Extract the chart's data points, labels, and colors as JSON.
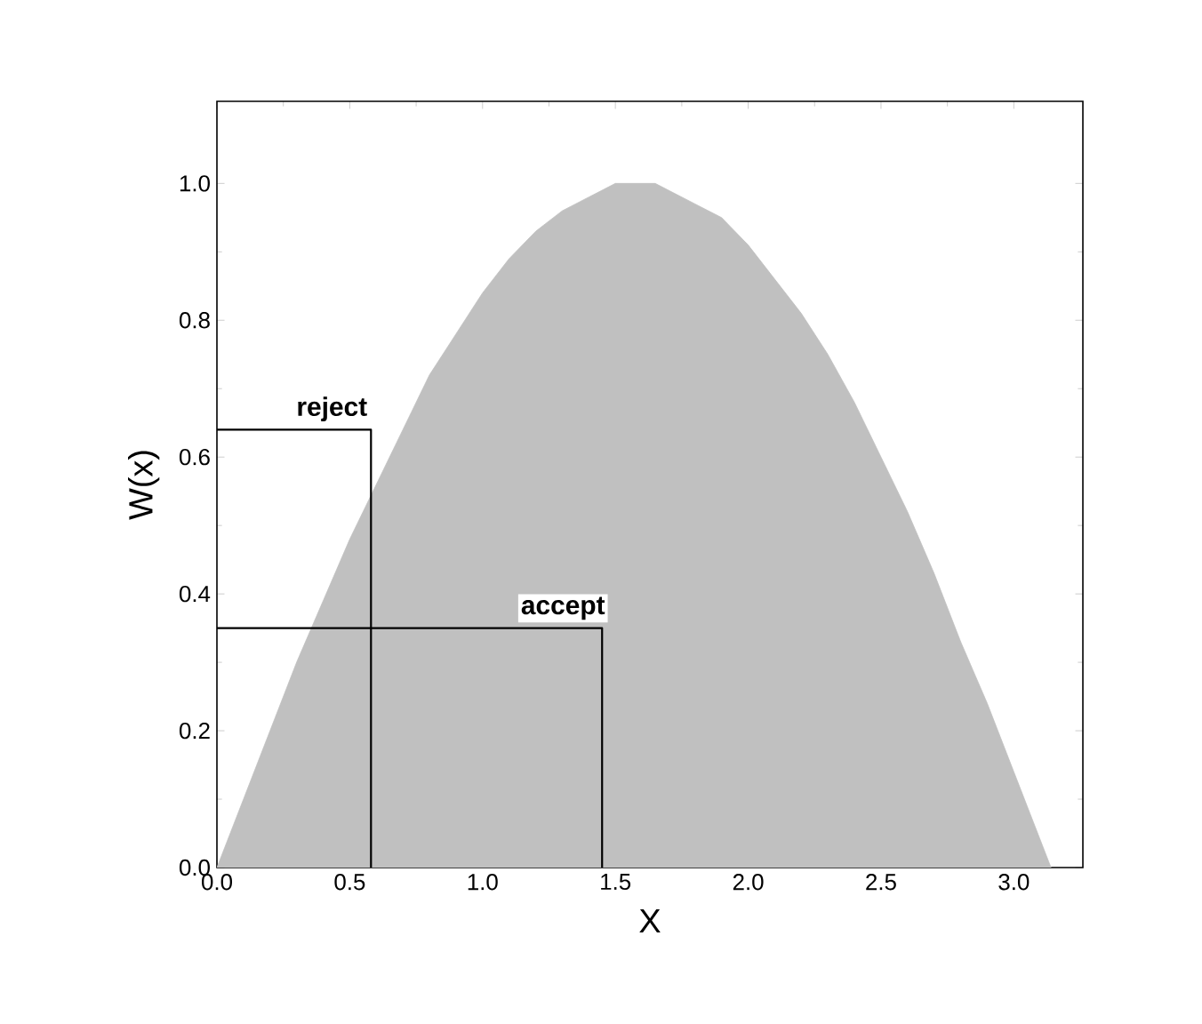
{
  "chart_data": {
    "type": "area",
    "xlabel": "X",
    "ylabel": "W(x)",
    "xlim": [
      0,
      3.26
    ],
    "ylim": [
      0,
      1.12
    ],
    "xticks": [
      {
        "value": 0,
        "label": "0.0"
      },
      {
        "value": 0.5,
        "label": "0.5"
      },
      {
        "value": 1,
        "label": "1.0"
      },
      {
        "value": 1.5,
        "label": "1.5"
      },
      {
        "value": 2,
        "label": "2.0"
      },
      {
        "value": 2.5,
        "label": "2.5"
      },
      {
        "value": 3,
        "label": "3.0"
      }
    ],
    "yticks": [
      {
        "value": 0,
        "label": "0.0"
      },
      {
        "value": 0.2,
        "label": "0.2"
      },
      {
        "value": 0.4,
        "label": "0.4"
      },
      {
        "value": 0.6,
        "label": "0.6"
      },
      {
        "value": 0.8,
        "label": "0.8"
      },
      {
        "value": 1,
        "label": "1.0"
      }
    ],
    "series": [
      {
        "color": "#c0c0c0",
        "x": [
          0,
          0.1,
          0.2,
          0.3,
          0.4,
          0.5,
          0.6,
          0.7,
          0.8,
          0.9,
          1.0,
          1.1,
          1.2,
          1.3,
          1.4,
          1.5,
          1.57,
          1.65,
          1.8,
          1.9,
          2.0,
          2.1,
          2.2,
          2.3,
          2.4,
          2.5,
          2.6,
          2.7,
          2.8,
          2.9,
          3.0,
          3.14
        ],
        "values": [
          0,
          0.1,
          0.2,
          0.3,
          0.39,
          0.48,
          0.56,
          0.64,
          0.72,
          0.78,
          0.84,
          0.89,
          0.93,
          0.96,
          0.98,
          1.0,
          1.0,
          1.0,
          0.97,
          0.95,
          0.91,
          0.86,
          0.81,
          0.75,
          0.68,
          0.6,
          0.52,
          0.43,
          0.33,
          0.24,
          0.14,
          0
        ]
      },
      {
        "type": "line",
        "color": "#000000",
        "x": [
          0,
          0.58,
          0.58
        ],
        "values": [
          0.64,
          0.64,
          0
        ]
      },
      {
        "type": "line",
        "color": "#000000",
        "x": [
          0,
          1.45,
          1.45
        ],
        "values": [
          0.35,
          0.35,
          0
        ]
      }
    ],
    "annotations": [
      {
        "text": "reject",
        "x": 0.58,
        "y": 0.64
      },
      {
        "text": "accept",
        "x": 1.45,
        "y": 0.35
      }
    ],
    "grid": false
  }
}
